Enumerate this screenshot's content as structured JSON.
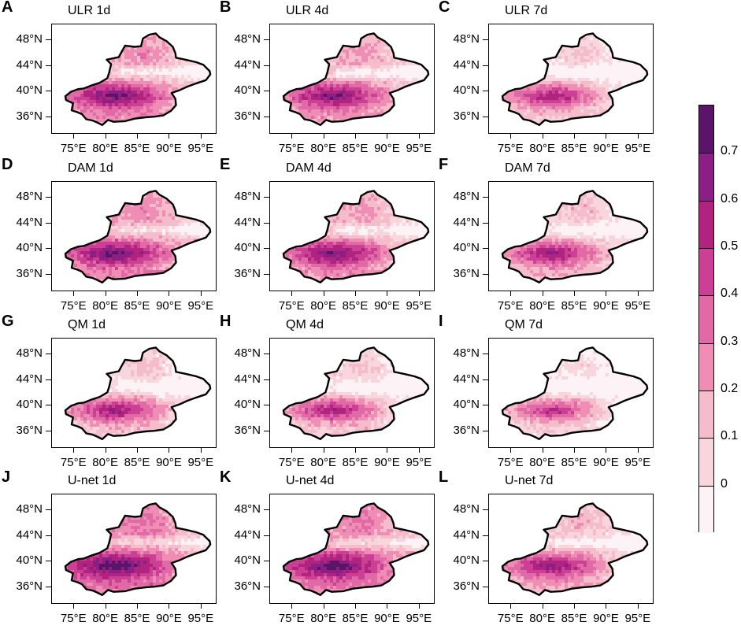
{
  "figure": {
    "colors": [
      "#fdf3f6",
      "#f9d6dd",
      "#f5bccb",
      "#f08db4",
      "#e06aa6",
      "#cb3f95",
      "#b0247f",
      "#8c1f85",
      "#5a1568"
    ],
    "boundary_color": "#000000"
  },
  "axes": {
    "lat_labels": [
      "48°N",
      "44°N",
      "40°N",
      "36°N"
    ],
    "lon_labels": [
      "75°E",
      "80°E",
      "85°E",
      "90°E",
      "95°E"
    ]
  },
  "panels": [
    {
      "letter": "A",
      "title": "ULR 1d",
      "intensity": 0.62
    },
    {
      "letter": "B",
      "title": "ULR 4d",
      "intensity": 0.6
    },
    {
      "letter": "C",
      "title": "ULR 7d",
      "intensity": 0.48
    },
    {
      "letter": "D",
      "title": "DAM 1d",
      "intensity": 0.64
    },
    {
      "letter": "E",
      "title": "DAM 4d",
      "intensity": 0.6
    },
    {
      "letter": "F",
      "title": "DAM 7d",
      "intensity": 0.52
    },
    {
      "letter": "G",
      "title": "QM 1d",
      "intensity": 0.5
    },
    {
      "letter": "H",
      "title": "QM 4d",
      "intensity": 0.48
    },
    {
      "letter": "I",
      "title": "QM 7d",
      "intensity": 0.42
    },
    {
      "letter": "J",
      "title": "U-net 1d",
      "intensity": 0.7
    },
    {
      "letter": "K",
      "title": "U-net 4d",
      "intensity": 0.68
    },
    {
      "letter": "L",
      "title": "U-net 7d",
      "intensity": 0.55
    }
  ],
  "colorbar": {
    "labels": [
      "0.7",
      "0.6",
      "0.5",
      "0.4",
      "0.3",
      "0.2",
      "0.1",
      "0"
    ]
  }
}
